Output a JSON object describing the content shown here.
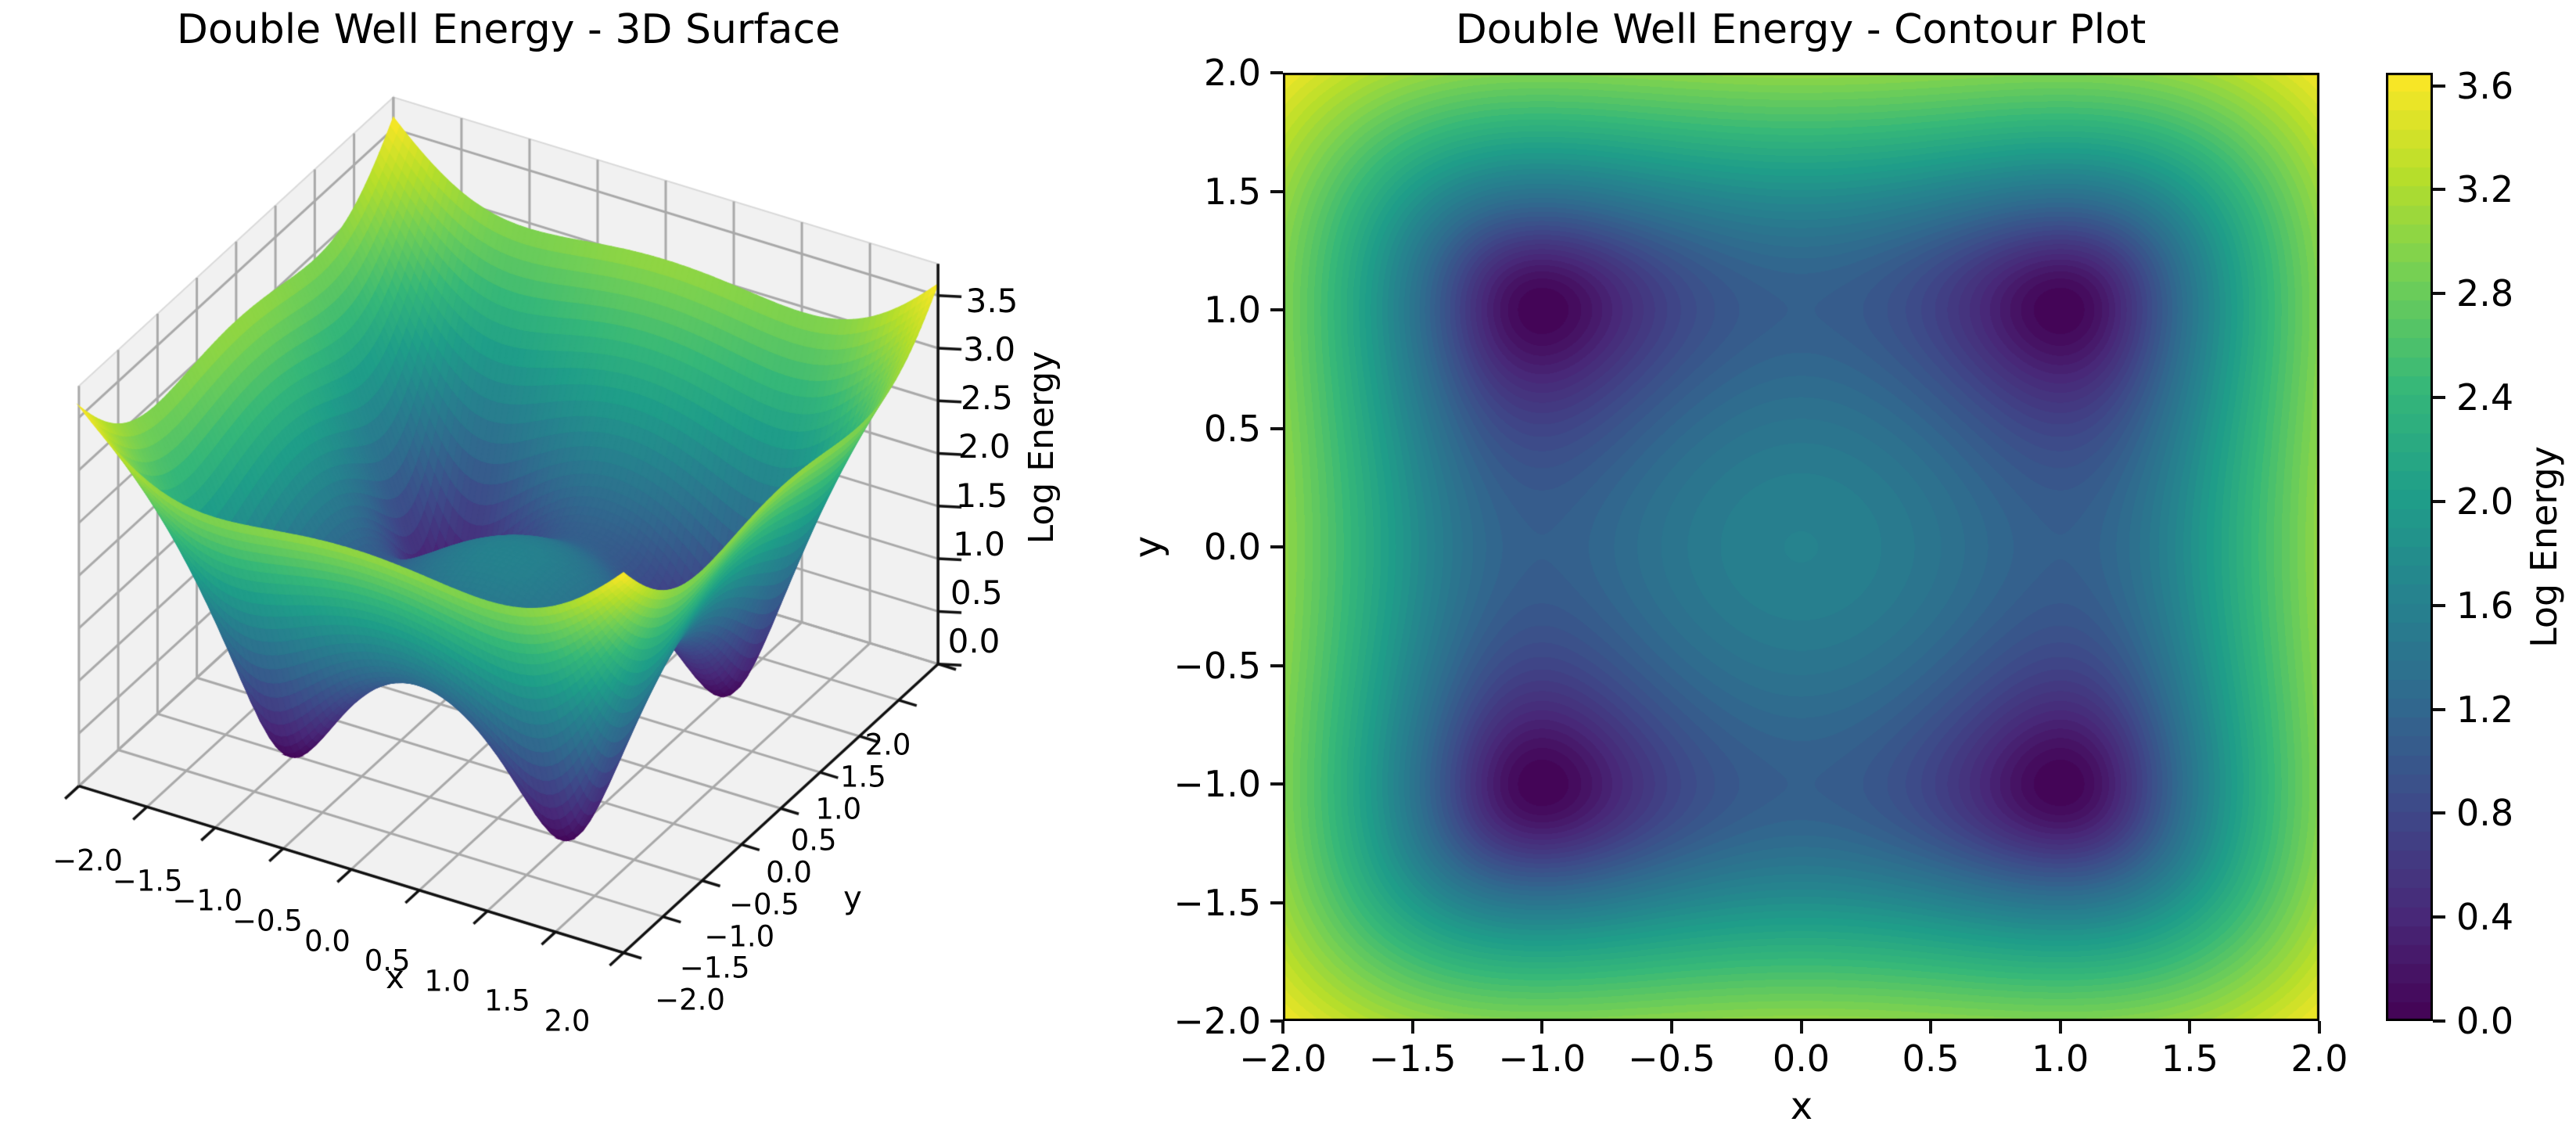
{
  "figure": {
    "background": "#ffffff",
    "description": "Two-panel energy landscape figure: 3D surface plot and filled contour plot of a double well potential"
  },
  "palette": {
    "viridis": [
      "#440154",
      "#482878",
      "#3e4989",
      "#31688e",
      "#26828e",
      "#1f9e89",
      "#35b779",
      "#6ece58",
      "#b5de2b",
      "#fde725"
    ],
    "pane_color": "#f1f1f1",
    "pane_edge_color": "#d9d9d9",
    "grid_color": "#a9a9a9",
    "axis_color": "#111111",
    "text_color": "#000000"
  },
  "chart_data": [
    {
      "type": "surface",
      "title": "Double Well Energy - 3D Surface",
      "xlabel": "x",
      "ylabel": "y",
      "zlabel": "Log Energy",
      "x_range": [
        -2,
        2
      ],
      "y_range": [
        -2,
        2
      ],
      "z_axis_range": [
        0,
        3.8
      ],
      "x_ticks": [
        -2,
        -1.5,
        -1,
        -0.5,
        0,
        0.5,
        1,
        1.5,
        2
      ],
      "x_tick_labels": [
        "−2.0",
        "−1.5",
        "−1.0",
        "−0.5",
        "0.0",
        "0.5",
        "1.0",
        "1.5",
        "2.0"
      ],
      "y_ticks": [
        -2,
        -1.5,
        -1,
        -0.5,
        0,
        0.5,
        1,
        1.5,
        2
      ],
      "y_tick_labels": [
        "−2.0",
        "−1.5",
        "−1.0",
        "−0.5",
        "0.0",
        "0.5",
        "1.0",
        "1.5",
        "2.0"
      ],
      "z_ticks": [
        0,
        0.5,
        1,
        1.5,
        2,
        2.5,
        3,
        3.5
      ],
      "z_tick_labels": [
        "0.0",
        "0.5",
        "1.0",
        "1.5",
        "2.0",
        "2.5",
        "3.0",
        "3.5"
      ],
      "function": "z = ln(1 + 2*((x^2-1)^2 + (y^2-1)^2))",
      "well_coefficient": 2,
      "z_min_value": 0,
      "z_max_value": 3.611,
      "center_value": 1.609,
      "corner_value": 3.611,
      "minima": [
        [
          -1,
          -1
        ],
        [
          -1,
          1
        ],
        [
          1,
          -1
        ],
        [
          1,
          1
        ]
      ],
      "view": {
        "elev": 30,
        "azim": -60
      },
      "colormap": "viridis",
      "grid_resolution": 90,
      "grid": true,
      "legend": "none"
    },
    {
      "type": "contourf",
      "title": "Double Well Energy - Contour Plot",
      "xlabel": "x",
      "ylabel": "y",
      "x_range": [
        -2,
        2
      ],
      "y_range": [
        -2,
        2
      ],
      "x_ticks": [
        -2,
        -1.5,
        -1,
        -0.5,
        0,
        0.5,
        1,
        1.5,
        2
      ],
      "x_tick_labels": [
        "−2.0",
        "−1.5",
        "−1.0",
        "−0.5",
        "0.0",
        "0.5",
        "1.0",
        "1.5",
        "2.0"
      ],
      "y_ticks": [
        -2,
        -1.5,
        -1,
        -0.5,
        0,
        0.5,
        1,
        1.5,
        2
      ],
      "y_tick_labels": [
        "−2.0",
        "−1.5",
        "−1.0",
        "−0.5",
        "0.0",
        "0.5",
        "1.0",
        "1.5",
        "2.0"
      ],
      "levels": 50,
      "vmin": 0,
      "vmax": 3.65,
      "function": "z = ln(1 + 2*((x^2-1)^2 + (y^2-1)^2))",
      "well_coefficient": 2,
      "minima": [
        [
          -1,
          -1
        ],
        [
          -1,
          1
        ],
        [
          1,
          -1
        ],
        [
          1,
          1
        ]
      ],
      "center_value": 1.609,
      "corner_value": 3.611,
      "colormap": "viridis",
      "grid": false,
      "colorbar": {
        "label": "Log Energy",
        "position": "right",
        "ticks": [
          0,
          0.4,
          0.8,
          1.2,
          1.6,
          2,
          2.4,
          2.8,
          3.2,
          3.6
        ],
        "tick_labels": [
          "0.0",
          "0.4",
          "0.8",
          "1.2",
          "1.6",
          "2.0",
          "2.4",
          "2.8",
          "3.2",
          "3.6"
        ]
      }
    }
  ]
}
